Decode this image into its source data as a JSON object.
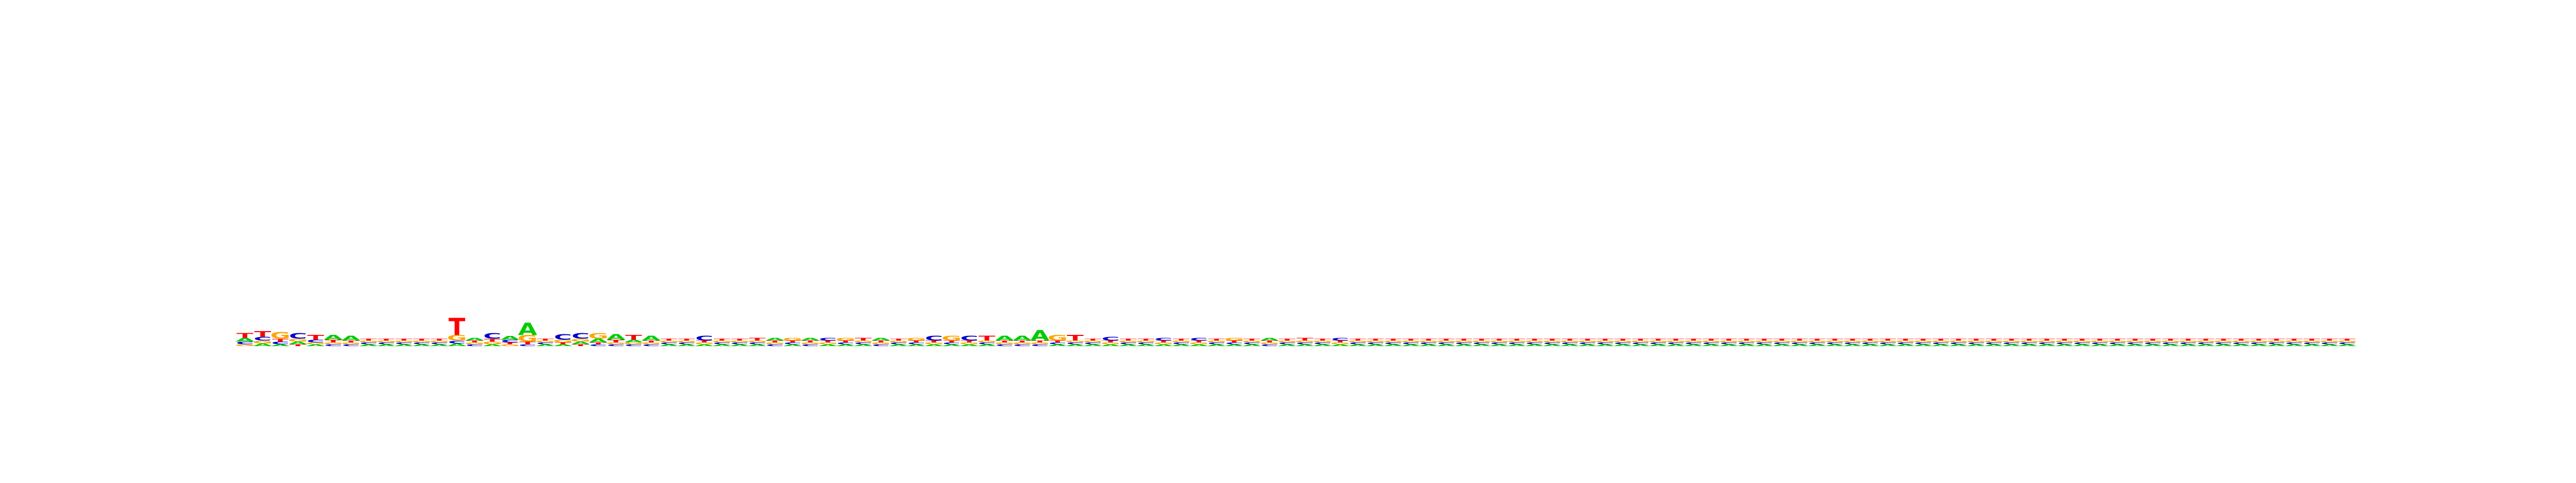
{
  "chart_data": {
    "type": "sequence-logo",
    "alphabet": [
      "A",
      "C",
      "G",
      "T"
    ],
    "colors": {
      "A": "#00cc00",
      "C": "#0000cc",
      "G": "#ffa500",
      "T": "#ff0000"
    },
    "ylim": [
      0,
      2
    ],
    "length": 128,
    "positions": [
      {
        "A": 0.04,
        "C": 0.03,
        "G": 0.02,
        "T": 0.05
      },
      {
        "A": 0.03,
        "C": 0.04,
        "G": 0.03,
        "T": 0.06
      },
      {
        "A": 0.02,
        "C": 0.03,
        "G": 0.07,
        "T": 0.03
      },
      {
        "A": 0.03,
        "C": 0.06,
        "G": 0.03,
        "T": 0.02
      },
      {
        "A": 0.02,
        "C": 0.03,
        "G": 0.02,
        "T": 0.05
      },
      {
        "A": 0.05,
        "C": 0.02,
        "G": 0.02,
        "T": 0.03
      },
      {
        "A": 0.05,
        "C": 0.02,
        "G": 0.02,
        "T": 0.02
      },
      {
        "A": 0.02,
        "C": 0.02,
        "G": 0.02,
        "T": 0.02
      },
      {
        "A": 0.02,
        "C": 0.02,
        "G": 0.02,
        "T": 0.02
      },
      {
        "A": 0.02,
        "C": 0.02,
        "G": 0.02,
        "T": 0.02
      },
      {
        "A": 0.02,
        "C": 0.02,
        "G": 0.02,
        "T": 0.02
      },
      {
        "A": 0.02,
        "C": 0.02,
        "G": 0.02,
        "T": 0.02
      },
      {
        "A": 0.03,
        "C": 0.03,
        "G": 0.06,
        "T": 0.18
      },
      {
        "A": 0.03,
        "C": 0.02,
        "G": 0.02,
        "T": 0.02
      },
      {
        "A": 0.02,
        "C": 0.06,
        "G": 0.03,
        "T": 0.03
      },
      {
        "A": 0.04,
        "C": 0.03,
        "G": 0.02,
        "T": 0.02
      },
      {
        "A": 0.13,
        "C": 0.02,
        "G": 0.07,
        "T": 0.03
      },
      {
        "A": 0.02,
        "C": 0.02,
        "G": 0.02,
        "T": 0.02
      },
      {
        "A": 0.02,
        "C": 0.06,
        "G": 0.03,
        "T": 0.02
      },
      {
        "A": 0.03,
        "C": 0.06,
        "G": 0.03,
        "T": 0.02
      },
      {
        "A": 0.04,
        "C": 0.02,
        "G": 0.06,
        "T": 0.02
      },
      {
        "A": 0.06,
        "C": 0.02,
        "G": 0.02,
        "T": 0.03
      },
      {
        "A": 0.03,
        "C": 0.02,
        "G": 0.02,
        "T": 0.05
      },
      {
        "A": 0.05,
        "C": 0.02,
        "G": 0.02,
        "T": 0.02
      },
      {
        "A": 0.02,
        "C": 0.02,
        "G": 0.02,
        "T": 0.02
      },
      {
        "A": 0.02,
        "C": 0.02,
        "G": 0.02,
        "T": 0.02
      },
      {
        "A": 0.02,
        "C": 0.05,
        "G": 0.02,
        "T": 0.02
      },
      {
        "A": 0.02,
        "C": 0.02,
        "G": 0.02,
        "T": 0.02
      },
      {
        "A": 0.02,
        "C": 0.02,
        "G": 0.02,
        "T": 0.02
      },
      {
        "A": 0.02,
        "C": 0.02,
        "G": 0.02,
        "T": 0.03
      },
      {
        "A": 0.03,
        "C": 0.02,
        "G": 0.02,
        "T": 0.02
      },
      {
        "A": 0.02,
        "C": 0.02,
        "G": 0.03,
        "T": 0.02
      },
      {
        "A": 0.03,
        "C": 0.02,
        "G": 0.02,
        "T": 0.02
      },
      {
        "A": 0.02,
        "C": 0.03,
        "G": 0.02,
        "T": 0.02
      },
      {
        "A": 0.02,
        "C": 0.02,
        "G": 0.03,
        "T": 0.02
      },
      {
        "A": 0.02,
        "C": 0.02,
        "G": 0.02,
        "T": 0.03
      },
      {
        "A": 0.03,
        "C": 0.02,
        "G": 0.02,
        "T": 0.02
      },
      {
        "A": 0.02,
        "C": 0.02,
        "G": 0.02,
        "T": 0.02
      },
      {
        "A": 0.02,
        "C": 0.02,
        "G": 0.03,
        "T": 0.02
      },
      {
        "A": 0.02,
        "C": 0.05,
        "G": 0.02,
        "T": 0.02
      },
      {
        "A": 0.02,
        "C": 0.02,
        "G": 0.05,
        "T": 0.02
      },
      {
        "A": 0.02,
        "C": 0.05,
        "G": 0.02,
        "T": 0.02
      },
      {
        "A": 0.02,
        "C": 0.02,
        "G": 0.02,
        "T": 0.05
      },
      {
        "A": 0.05,
        "C": 0.02,
        "G": 0.02,
        "T": 0.02
      },
      {
        "A": 0.05,
        "C": 0.02,
        "G": 0.02,
        "T": 0.02
      },
      {
        "A": 0.11,
        "C": 0.02,
        "G": 0.02,
        "T": 0.02
      },
      {
        "A": 0.02,
        "C": 0.02,
        "G": 0.06,
        "T": 0.02
      },
      {
        "A": 0.02,
        "C": 0.02,
        "G": 0.02,
        "T": 0.06
      },
      {
        "A": 0.02,
        "C": 0.02,
        "G": 0.02,
        "T": 0.02
      },
      {
        "A": 0.02,
        "C": 0.04,
        "G": 0.02,
        "T": 0.02
      },
      {
        "A": 0.02,
        "C": 0.02,
        "G": 0.02,
        "T": 0.02
      },
      {
        "A": 0.02,
        "C": 0.02,
        "G": 0.02,
        "T": 0.02
      },
      {
        "A": 0.02,
        "C": 0.03,
        "G": 0.02,
        "T": 0.02
      },
      {
        "A": 0.02,
        "C": 0.02,
        "G": 0.02,
        "T": 0.02
      },
      {
        "A": 0.02,
        "C": 0.03,
        "G": 0.02,
        "T": 0.02
      },
      {
        "A": 0.02,
        "C": 0.02,
        "G": 0.02,
        "T": 0.02
      },
      {
        "A": 0.02,
        "C": 0.02,
        "G": 0.03,
        "T": 0.02
      },
      {
        "A": 0.02,
        "C": 0.02,
        "G": 0.02,
        "T": 0.02
      },
      {
        "A": 0.03,
        "C": 0.02,
        "G": 0.02,
        "T": 0.02
      },
      {
        "A": 0.02,
        "C": 0.02,
        "G": 0.02,
        "T": 0.02
      },
      {
        "A": 0.02,
        "C": 0.02,
        "G": 0.02,
        "T": 0.03
      },
      {
        "A": 0.02,
        "C": 0.02,
        "G": 0.02,
        "T": 0.02
      },
      {
        "A": 0.02,
        "C": 0.03,
        "G": 0.02,
        "T": 0.02
      },
      {
        "A": 0.02,
        "C": 0.02,
        "G": 0.02,
        "T": 0.02
      },
      {
        "A": 0.02,
        "C": 0.02,
        "G": 0.02,
        "T": 0.02
      },
      {
        "A": 0.02,
        "C": 0.02,
        "G": 0.02,
        "T": 0.02
      },
      {
        "A": 0.02,
        "C": 0.02,
        "G": 0.02,
        "T": 0.02
      },
      {
        "A": 0.02,
        "C": 0.02,
        "G": 0.02,
        "T": 0.02
      },
      {
        "A": 0.02,
        "C": 0.02,
        "G": 0.02,
        "T": 0.02
      },
      {
        "A": 0.02,
        "C": 0.02,
        "G": 0.02,
        "T": 0.02
      },
      {
        "A": 0.02,
        "C": 0.02,
        "G": 0.02,
        "T": 0.02
      },
      {
        "A": 0.02,
        "C": 0.02,
        "G": 0.02,
        "T": 0.02
      },
      {
        "A": 0.02,
        "C": 0.02,
        "G": 0.02,
        "T": 0.02
      },
      {
        "A": 0.02,
        "C": 0.02,
        "G": 0.02,
        "T": 0.02
      },
      {
        "A": 0.02,
        "C": 0.02,
        "G": 0.02,
        "T": 0.02
      },
      {
        "A": 0.02,
        "C": 0.02,
        "G": 0.02,
        "T": 0.02
      },
      {
        "A": 0.02,
        "C": 0.02,
        "G": 0.02,
        "T": 0.02
      },
      {
        "A": 0.02,
        "C": 0.02,
        "G": 0.02,
        "T": 0.02
      },
      {
        "A": 0.02,
        "C": 0.02,
        "G": 0.02,
        "T": 0.02
      },
      {
        "A": 0.02,
        "C": 0.02,
        "G": 0.02,
        "T": 0.02
      },
      {
        "A": 0.02,
        "C": 0.02,
        "G": 0.02,
        "T": 0.02
      },
      {
        "A": 0.02,
        "C": 0.02,
        "G": 0.02,
        "T": 0.02
      },
      {
        "A": 0.02,
        "C": 0.02,
        "G": 0.02,
        "T": 0.02
      },
      {
        "A": 0.02,
        "C": 0.02,
        "G": 0.02,
        "T": 0.02
      },
      {
        "A": 0.02,
        "C": 0.02,
        "G": 0.02,
        "T": 0.02
      },
      {
        "A": 0.02,
        "C": 0.02,
        "G": 0.02,
        "T": 0.02
      },
      {
        "A": 0.02,
        "C": 0.02,
        "G": 0.02,
        "T": 0.02
      },
      {
        "A": 0.02,
        "C": 0.02,
        "G": 0.02,
        "T": 0.02
      },
      {
        "A": 0.02,
        "C": 0.02,
        "G": 0.02,
        "T": 0.02
      },
      {
        "A": 0.02,
        "C": 0.02,
        "G": 0.02,
        "T": 0.02
      },
      {
        "A": 0.02,
        "C": 0.02,
        "G": 0.02,
        "T": 0.02
      },
      {
        "A": 0.02,
        "C": 0.02,
        "G": 0.02,
        "T": 0.02
      },
      {
        "A": 0.02,
        "C": 0.02,
        "G": 0.02,
        "T": 0.02
      },
      {
        "A": 0.02,
        "C": 0.02,
        "G": 0.02,
        "T": 0.02
      },
      {
        "A": 0.02,
        "C": 0.02,
        "G": 0.02,
        "T": 0.02
      },
      {
        "A": 0.02,
        "C": 0.02,
        "G": 0.02,
        "T": 0.02
      },
      {
        "A": 0.02,
        "C": 0.02,
        "G": 0.02,
        "T": 0.02
      },
      {
        "A": 0.02,
        "C": 0.02,
        "G": 0.02,
        "T": 0.02
      },
      {
        "A": 0.02,
        "C": 0.02,
        "G": 0.02,
        "T": 0.02
      },
      {
        "A": 0.02,
        "C": 0.02,
        "G": 0.02,
        "T": 0.02
      },
      {
        "A": 0.02,
        "C": 0.02,
        "G": 0.02,
        "T": 0.02
      },
      {
        "A": 0.02,
        "C": 0.02,
        "G": 0.02,
        "T": 0.02
      },
      {
        "A": 0.02,
        "C": 0.02,
        "G": 0.02,
        "T": 0.02
      },
      {
        "A": 0.02,
        "C": 0.02,
        "G": 0.02,
        "T": 0.02
      },
      {
        "A": 0.02,
        "C": 0.02,
        "G": 0.02,
        "T": 0.02
      },
      {
        "A": 0.02,
        "C": 0.02,
        "G": 0.02,
        "T": 0.02
      },
      {
        "A": 0.02,
        "C": 0.02,
        "G": 0.02,
        "T": 0.02
      },
      {
        "A": 0.02,
        "C": 0.02,
        "G": 0.02,
        "T": 0.02
      },
      {
        "A": 0.02,
        "C": 0.02,
        "G": 0.02,
        "T": 0.02
      },
      {
        "A": 0.02,
        "C": 0.02,
        "G": 0.02,
        "T": 0.02
      },
      {
        "A": 0.02,
        "C": 0.02,
        "G": 0.02,
        "T": 0.02
      },
      {
        "A": 0.02,
        "C": 0.02,
        "G": 0.02,
        "T": 0.02
      },
      {
        "A": 0.02,
        "C": 0.02,
        "G": 0.02,
        "T": 0.02
      },
      {
        "A": 0.02,
        "C": 0.02,
        "G": 0.02,
        "T": 0.02
      },
      {
        "A": 0.02,
        "C": 0.02,
        "G": 0.02,
        "T": 0.02
      },
      {
        "A": 0.02,
        "C": 0.02,
        "G": 0.02,
        "T": 0.02
      },
      {
        "A": 0.02,
        "C": 0.02,
        "G": 0.02,
        "T": 0.02
      },
      {
        "A": 0.02,
        "C": 0.02,
        "G": 0.02,
        "T": 0.02
      },
      {
        "A": 0.02,
        "C": 0.02,
        "G": 0.02,
        "T": 0.02
      },
      {
        "A": 0.02,
        "C": 0.02,
        "G": 0.02,
        "T": 0.02
      }
    ]
  }
}
